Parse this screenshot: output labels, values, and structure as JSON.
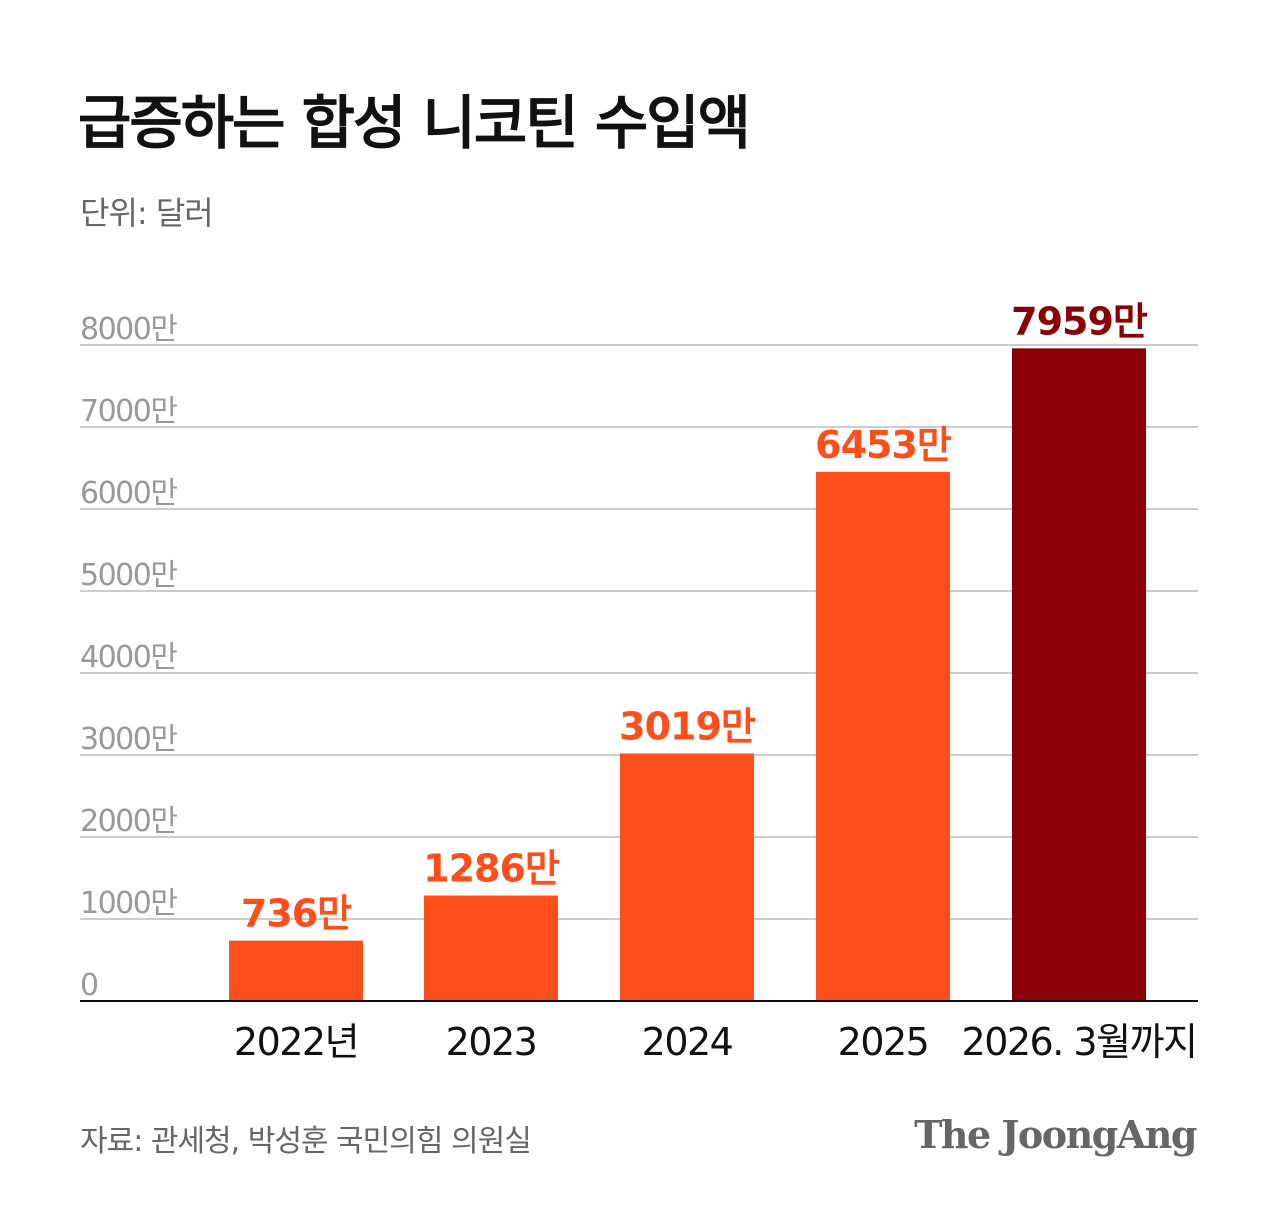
{
  "header": {
    "title": "급증하는 합성 니코틴 수입액",
    "unit": "단위: 달러"
  },
  "footer": {
    "source": "자료: 관세청, 박성훈 국민의힘 의원실",
    "logo": "The JoongAng"
  },
  "chart_data": {
    "type": "bar",
    "title": "급증하는 합성 니코틴 수입액",
    "ylabel": "단위: 달러",
    "categories": [
      "2022년",
      "2023",
      "2024",
      "2025",
      "2026. 3월까지"
    ],
    "values": [
      7360000,
      12860000,
      30190000,
      64530000,
      79590000
    ],
    "data_labels": [
      "736만",
      "1286만",
      "3019만",
      "6453만",
      "7959만"
    ],
    "ylim": [
      0,
      80000000
    ],
    "yticks": [
      0,
      10000000,
      20000000,
      30000000,
      40000000,
      50000000,
      60000000,
      70000000,
      80000000
    ],
    "ytick_labels": [
      "0",
      "1000만",
      "2000만",
      "3000만",
      "4000만",
      "5000만",
      "6000만",
      "7000만",
      "8000만"
    ],
    "grid": true,
    "colors": {
      "bar": "#FF4E1A",
      "highlight_bar": "#8B0006",
      "grid": "#CCCCCC",
      "axis": "#111111",
      "tick_label": "#999999"
    },
    "highlight_index": 4
  }
}
